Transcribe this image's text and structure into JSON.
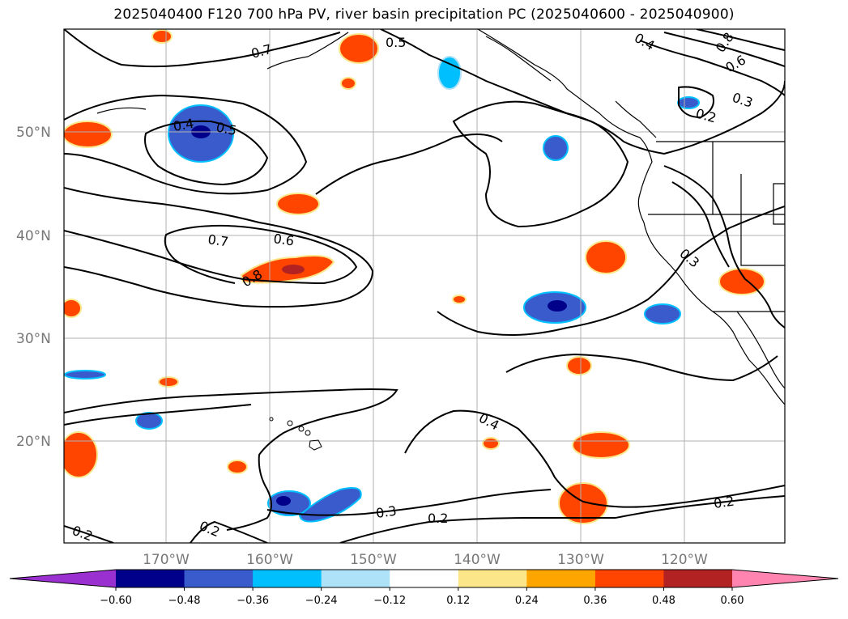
{
  "title": "2025040400 F120 700 hPa PV, river basin precipitation PC (2025040600 - 2025040900)",
  "lat_labels": [
    "50°N",
    "40°N",
    "30°N",
    "20°N"
  ],
  "lon_labels": [
    "170°W",
    "160°W",
    "150°W",
    "140°W",
    "130°W",
    "120°W"
  ],
  "contour_labels": [
    "0.7",
    "0.5",
    "0.4",
    "0.5",
    "0.7",
    "0.6",
    "0.8",
    "0.4",
    "0.8",
    "0.6",
    "0.3",
    "0.2",
    "0.3",
    "0.4",
    "0.3",
    "0.2",
    "0.2",
    "0.2",
    "0.2"
  ],
  "colorbar": {
    "ticks": [
      "−0.60",
      "−0.48",
      "−0.36",
      "−0.24",
      "−0.12",
      "0.12",
      "0.24",
      "0.36",
      "0.48",
      "0.60"
    ],
    "colors": [
      "#9b30d0",
      "#00008b",
      "#3a5bcc",
      "#00bfff",
      "#aee2f8",
      "#ffffff",
      "#fbe78a",
      "#ffa500",
      "#ff4500",
      "#b22222",
      "#ff85b0"
    ]
  }
}
